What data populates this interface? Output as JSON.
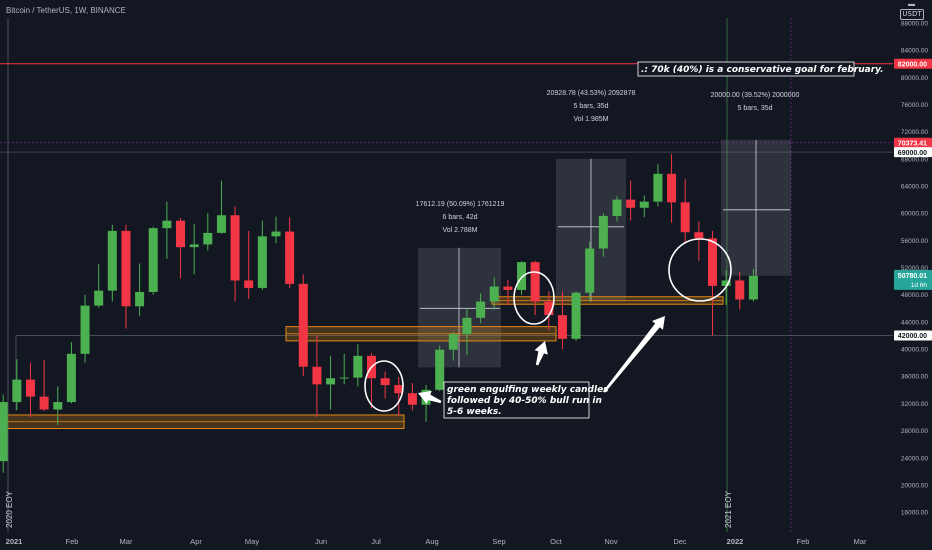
{
  "header": {
    "title": "Bitcoin / TetherUS, 1W, BINANCE",
    "currency_badge": "USDT"
  },
  "chart_data": {
    "type": "candlestick",
    "title": "Bitcoin / TetherUS, 1W, BINANCE",
    "ylim": [
      11000,
      88000
    ],
    "y_ticks": [
      12000,
      16000,
      20000,
      24000,
      28000,
      32000,
      36000,
      40000,
      44000,
      48000,
      52000,
      56000,
      60000,
      64000,
      68000,
      72000,
      76000,
      80000,
      84000,
      88000
    ],
    "x_ticks": [
      {
        "label": "2021",
        "bold": true
      },
      {
        "label": "Feb",
        "bold": false
      },
      {
        "label": "Mar",
        "bold": false
      },
      {
        "label": "Apr",
        "bold": false
      },
      {
        "label": "May",
        "bold": false
      },
      {
        "label": "Jun",
        "bold": false
      },
      {
        "label": "Jul",
        "bold": false
      },
      {
        "label": "Aug",
        "bold": false
      },
      {
        "label": "Sep",
        "bold": false
      },
      {
        "label": "Oct",
        "bold": false
      },
      {
        "label": "Nov",
        "bold": false
      },
      {
        "label": "Dec",
        "bold": false
      },
      {
        "label": "2022",
        "bold": true
      },
      {
        "label": "Feb",
        "bold": false
      },
      {
        "label": "Mar",
        "bold": false
      }
    ],
    "candles": [
      [
        23500,
        33300,
        21800,
        32200
      ],
      [
        32200,
        38500,
        31000,
        35500
      ],
      [
        35500,
        38000,
        30000,
        33000
      ],
      [
        33000,
        38400,
        30900,
        31100
      ],
      [
        31100,
        34500,
        28800,
        32200
      ],
      [
        32200,
        41000,
        32000,
        39300
      ],
      [
        39300,
        48000,
        38000,
        46400
      ],
      [
        46400,
        52500,
        46100,
        48600
      ],
      [
        48600,
        58300,
        47000,
        57400
      ],
      [
        57400,
        58300,
        43000,
        46300
      ],
      [
        46300,
        52600,
        44900,
        48400
      ],
      [
        48400,
        58000,
        48000,
        57800
      ],
      [
        57800,
        61700,
        53300,
        58900
      ],
      [
        58900,
        59300,
        50400,
        55000
      ],
      [
        55000,
        58400,
        51000,
        55400
      ],
      [
        55400,
        60000,
        54500,
        57100
      ],
      [
        57100,
        64800,
        57000,
        59700
      ],
      [
        59700,
        61000,
        47000,
        50100
      ],
      [
        50100,
        57400,
        47400,
        49000
      ],
      [
        49000,
        58900,
        48700,
        56600
      ],
      [
        56600,
        59500,
        55600,
        57300
      ],
      [
        57300,
        59400,
        49000,
        49600
      ],
      [
        49600,
        51000,
        36000,
        37400
      ],
      [
        37400,
        42000,
        30000,
        34800
      ],
      [
        34800,
        39000,
        31100,
        35700
      ],
      [
        35700,
        39300,
        34800,
        35800
      ],
      [
        35800,
        40700,
        34500,
        39000
      ],
      [
        39000,
        39400,
        31300,
        35700
      ],
      [
        35700,
        36700,
        32700,
        34700
      ],
      [
        34700,
        35900,
        30200,
        33500
      ],
      [
        33500,
        35000,
        31000,
        31800
      ],
      [
        31800,
        34700,
        29300,
        34000
      ],
      [
        34000,
        40500,
        33800,
        39900
      ],
      [
        39900,
        42500,
        38300,
        42200
      ],
      [
        42200,
        46000,
        39100,
        44600
      ],
      [
        44600,
        48200,
        43800,
        47000
      ],
      [
        47000,
        50500,
        45800,
        49200
      ],
      [
        49200,
        50200,
        46500,
        48700
      ],
      [
        48700,
        52900,
        48000,
        52800
      ],
      [
        52800,
        53000,
        45000,
        47000
      ],
      [
        47000,
        48500,
        42800,
        45000
      ],
      [
        45000,
        48500,
        40000,
        41500
      ],
      [
        41500,
        48500,
        41200,
        48300
      ],
      [
        48300,
        55800,
        47000,
        54800
      ],
      [
        54800,
        60000,
        53600,
        59600
      ],
      [
        59600,
        62500,
        58800,
        62000
      ],
      [
        62000,
        64800,
        58900,
        60800
      ],
      [
        60800,
        62600,
        59400,
        61700
      ],
      [
        61700,
        67200,
        61000,
        65800
      ],
      [
        65800,
        68700,
        58600,
        61600
      ],
      [
        61600,
        65000,
        55500,
        57200
      ],
      [
        57200,
        58800,
        53000,
        56300
      ],
      [
        56300,
        57400,
        42000,
        49300
      ],
      [
        49300,
        51600,
        46500,
        50100
      ],
      [
        50100,
        51400,
        45800,
        47300
      ],
      [
        47300,
        51800,
        47000,
        50780
      ]
    ],
    "series": [
      {
        "name": "ask note",
        "text": ".: 70k (40%) is a conservative goal for february."
      },
      {
        "name": "bull note",
        "text": "green engulfing weekly candles followed by 40-50% bull run in 5-6 weeks."
      }
    ],
    "price_labels": {
      "red_line": "82000.00",
      "gray_line": "69000.00",
      "red_tag": "70373.41",
      "current": "50780.01",
      "current_time": "1d 6h",
      "support": "42000.00"
    },
    "measurements": [
      {
        "line1": "17612.19 (50.09%) 1761219",
        "line2": "6 bars, 42d",
        "line3": "Vol 2.788M"
      },
      {
        "line1": "20928.78 (43.53%) 2092878",
        "line2": "5 bars, 35d",
        "line3": "Vol 1.985M"
      },
      {
        "line1": "20000.00 (39.52%) 2000000",
        "line2": "5 bars, 35d",
        "line3": ""
      }
    ],
    "vertical_markers": [
      "2020 EOY",
      "2021 EOY"
    ],
    "grid": false,
    "colors": {
      "up": "#4caf50",
      "down": "#f23645",
      "background": "#131722",
      "zone": "#e38a14",
      "red_line": "#f23645",
      "projection": "#787b86"
    }
  }
}
